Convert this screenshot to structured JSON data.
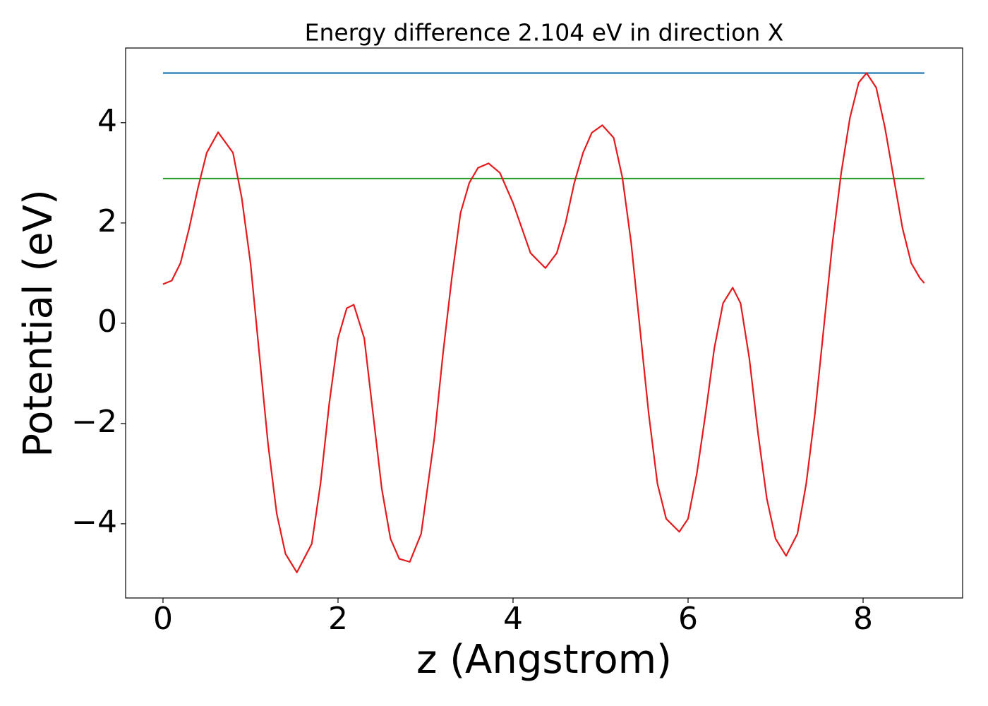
{
  "chart_data": {
    "type": "line",
    "title": "Energy difference 2.104 eV in direction X",
    "xlabel": "z (Angstrom)",
    "ylabel": "Potential (eV)",
    "xlim": [
      -0.427,
      9.137
    ],
    "ylim": [
      -5.48,
      5.49
    ],
    "xticks": [
      0,
      2,
      4,
      6,
      8
    ],
    "yticks": [
      {
        "value": -4,
        "label": "−4"
      },
      {
        "value": -2,
        "label": "−2"
      },
      0,
      2,
      4
    ],
    "grid": false,
    "series": [
      {
        "color": "#1f77b4",
        "x": [
          0,
          8.7
        ],
        "values": [
          4.99,
          4.99
        ]
      },
      {
        "color": "#2ca02c",
        "x": [
          0,
          8.7
        ],
        "values": [
          2.886,
          2.886
        ]
      },
      {
        "color": "#e41a1c",
        "x": [
          0,
          0.1,
          0.2,
          0.3,
          0.4,
          0.5,
          0.63,
          0.8,
          0.9,
          1.0,
          1.1,
          1.2,
          1.3,
          1.4,
          1.53,
          1.7,
          1.8,
          1.9,
          2.0,
          2.1,
          2.18,
          2.3,
          2.4,
          2.5,
          2.6,
          2.7,
          2.82,
          2.95,
          3.1,
          3.2,
          3.3,
          3.4,
          3.5,
          3.6,
          3.72,
          3.85,
          4.0,
          4.1,
          4.2,
          4.37,
          4.5,
          4.6,
          4.7,
          4.8,
          4.9,
          5.02,
          5.15,
          5.25,
          5.35,
          5.45,
          5.55,
          5.65,
          5.75,
          5.9,
          6.0,
          6.1,
          6.2,
          6.3,
          6.4,
          6.51,
          6.6,
          6.7,
          6.8,
          6.9,
          7.0,
          7.12,
          7.25,
          7.35,
          7.45,
          7.55,
          7.65,
          7.75,
          7.85,
          7.95,
          8.04,
          8.15,
          8.25,
          8.35,
          8.45,
          8.55,
          8.65,
          8.7
        ],
        "values": [
          0.78,
          0.85,
          1.2,
          1.9,
          2.7,
          3.4,
          3.81,
          3.4,
          2.5,
          1.2,
          -0.6,
          -2.4,
          -3.8,
          -4.6,
          -4.97,
          -4.4,
          -3.2,
          -1.6,
          -0.3,
          0.3,
          0.37,
          -0.3,
          -1.8,
          -3.3,
          -4.3,
          -4.7,
          -4.76,
          -4.2,
          -2.3,
          -0.6,
          0.9,
          2.2,
          2.8,
          3.1,
          3.19,
          3.0,
          2.4,
          1.9,
          1.4,
          1.1,
          1.4,
          2.0,
          2.8,
          3.4,
          3.8,
          3.95,
          3.7,
          2.9,
          1.6,
          -0.1,
          -1.8,
          -3.2,
          -3.9,
          -4.16,
          -3.9,
          -3.0,
          -1.8,
          -0.5,
          0.4,
          0.71,
          0.4,
          -0.7,
          -2.2,
          -3.5,
          -4.3,
          -4.64,
          -4.2,
          -3.2,
          -1.8,
          -0.1,
          1.6,
          3.0,
          4.1,
          4.8,
          4.99,
          4.7,
          3.9,
          2.9,
          1.9,
          1.2,
          0.9,
          0.8
        ]
      }
    ]
  }
}
